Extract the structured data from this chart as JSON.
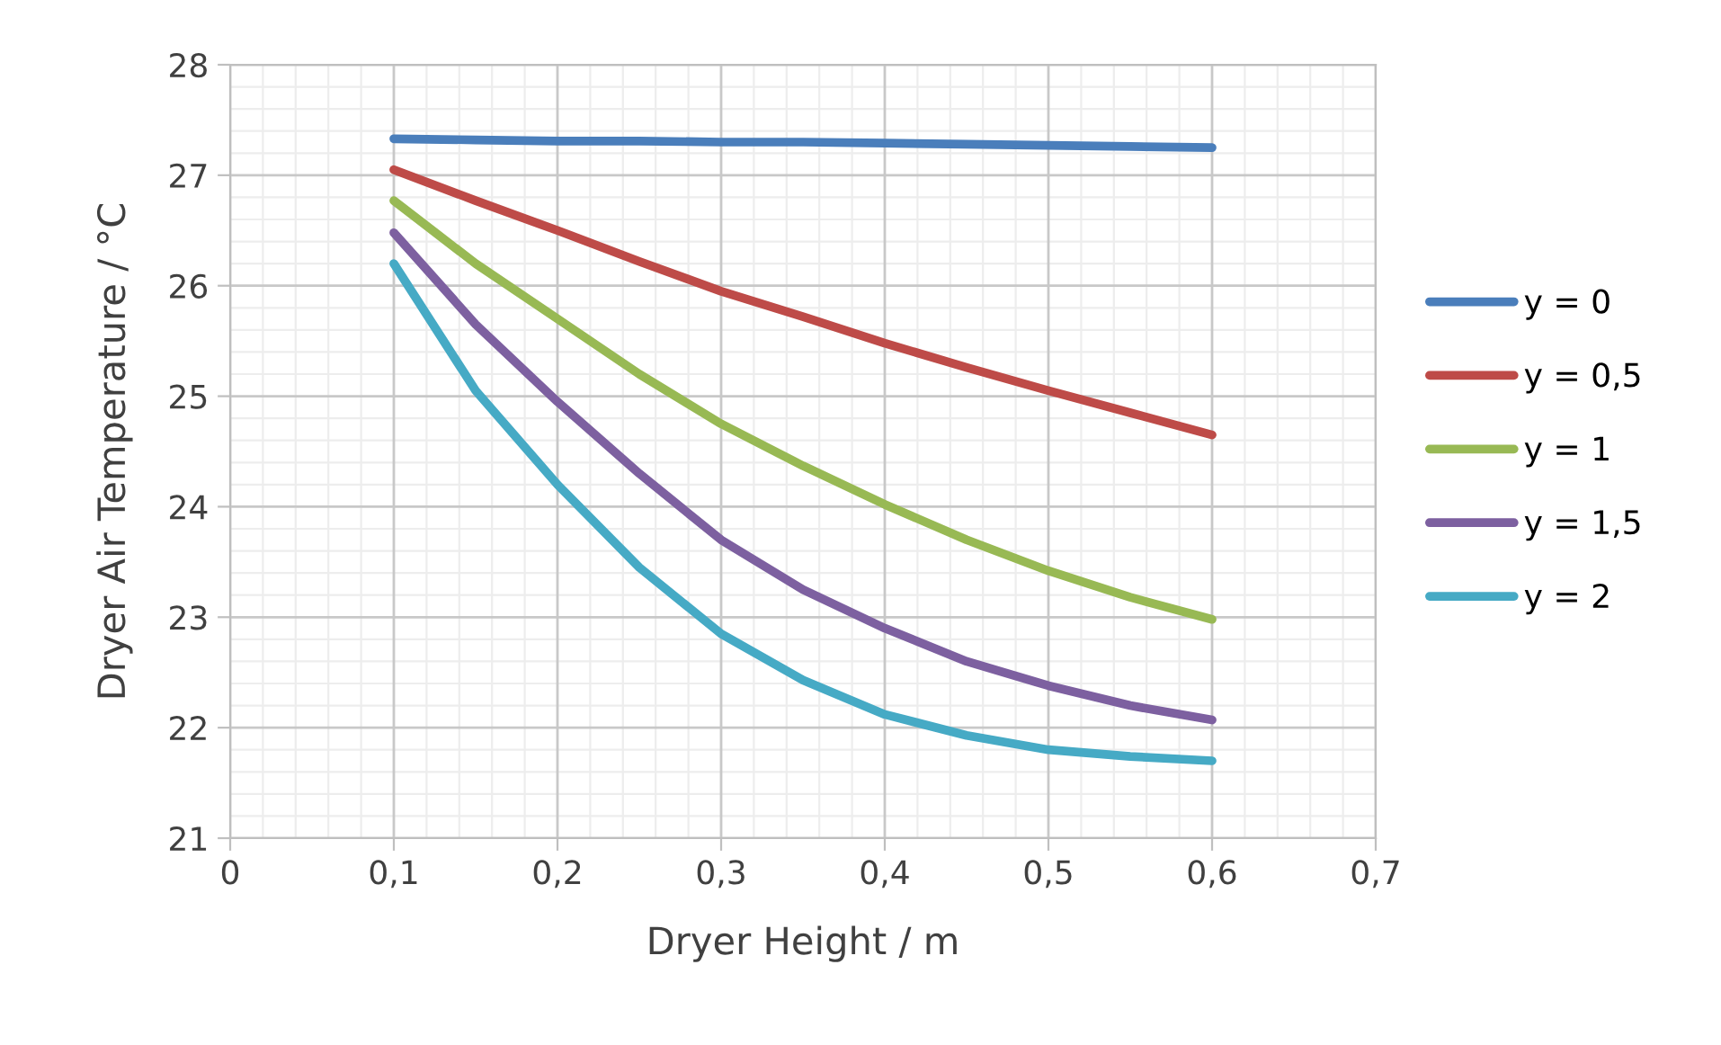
{
  "chart_data": {
    "type": "line",
    "xlabel": "Dryer Height / m",
    "ylabel": "Dryer Air Temperature / °C",
    "x": [
      0.1,
      0.15,
      0.2,
      0.25,
      0.3,
      0.35,
      0.4,
      0.45,
      0.5,
      0.55,
      0.6
    ],
    "series": [
      {
        "name": "y = 0",
        "color": "#4a7ebb",
        "values": [
          27.33,
          27.32,
          27.31,
          27.31,
          27.3,
          27.3,
          27.29,
          27.28,
          27.27,
          27.26,
          27.25
        ]
      },
      {
        "name": "y = 0,5",
        "color": "#be4b48",
        "values": [
          27.05,
          26.77,
          26.5,
          26.22,
          25.95,
          25.72,
          25.48,
          25.26,
          25.05,
          24.85,
          24.65
        ]
      },
      {
        "name": "y = 1",
        "color": "#98b954",
        "values": [
          26.77,
          26.2,
          25.7,
          25.2,
          24.75,
          24.37,
          24.02,
          23.7,
          23.42,
          23.18,
          22.98
        ]
      },
      {
        "name": "y = 1,5",
        "color": "#7d60a0",
        "values": [
          26.48,
          25.65,
          24.95,
          24.3,
          23.7,
          23.25,
          22.9,
          22.6,
          22.38,
          22.2,
          22.07
        ]
      },
      {
        "name": "y = 2",
        "color": "#46aac5",
        "values": [
          26.2,
          25.05,
          24.2,
          23.45,
          22.85,
          22.43,
          22.12,
          21.93,
          21.8,
          21.74,
          21.7
        ]
      }
    ],
    "xlim": [
      0,
      0.7
    ],
    "ylim": [
      21,
      28
    ],
    "xticks": [
      {
        "value": 0,
        "label": "0"
      },
      {
        "value": 0.1,
        "label": "0,1"
      },
      {
        "value": 0.2,
        "label": "0,2"
      },
      {
        "value": 0.3,
        "label": "0,3"
      },
      {
        "value": 0.4,
        "label": "0,4"
      },
      {
        "value": 0.5,
        "label": "0,5"
      },
      {
        "value": 0.6,
        "label": "0,6"
      },
      {
        "value": 0.7,
        "label": "0,7"
      }
    ],
    "yticks": [
      21,
      22,
      23,
      24,
      25,
      26,
      27,
      28
    ],
    "grid": true,
    "legend": "right",
    "marker": "none",
    "line_style": "solid"
  }
}
